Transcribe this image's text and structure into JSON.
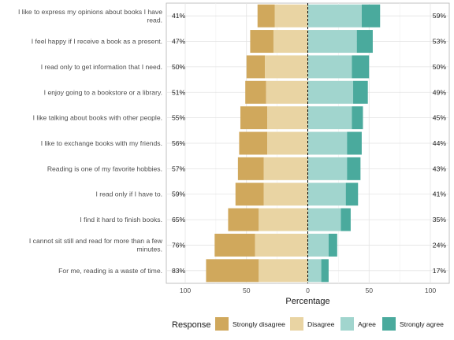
{
  "chart_data": {
    "type": "bar",
    "orientation": "horizontal-diverging",
    "xlabel": "Percentage",
    "ylabel": "",
    "xlim": [
      -100,
      100
    ],
    "xticks": [
      -100,
      -50,
      0,
      50,
      100
    ],
    "xtick_labels": [
      "100",
      "50",
      "0",
      "50",
      "100"
    ],
    "grid": true,
    "legend_title": "Response",
    "legend_position": "bottom",
    "categories": [
      "I like to express my opinions about books I have read.",
      "I feel happy if I receive a book as a present.",
      "I read only to get information that I need.",
      "I enjoy going to a bookstore or a library.",
      "I like talking about books with other people.",
      "I like to exchange books with my friends.",
      "Reading is one of my favorite hobbies.",
      "I read only if I have to.",
      "I find it hard to finish books.",
      "I cannot sit still and read for more than a few minutes.",
      "For me, reading is a waste of time."
    ],
    "category_lines": [
      [
        "I like to express my opinions about books I have",
        "read."
      ],
      [
        "I feel happy if I receive a book as a present."
      ],
      [
        "I read only to get information that I need."
      ],
      [
        "I enjoy going to a bookstore or a library."
      ],
      [
        "I like talking about books with other people."
      ],
      [
        "I like to exchange books with my friends."
      ],
      [
        "Reading is one of my favorite hobbies."
      ],
      [
        "I read only if I have to."
      ],
      [
        "I find it hard to finish books."
      ],
      [
        "I cannot sit still and read for more than a few",
        "minutes."
      ],
      [
        "For me, reading is a waste of time."
      ]
    ],
    "left_labels": [
      "41%",
      "47%",
      "50%",
      "51%",
      "55%",
      "56%",
      "57%",
      "59%",
      "65%",
      "76%",
      "83%"
    ],
    "right_labels": [
      "59%",
      "53%",
      "50%",
      "49%",
      "45%",
      "44%",
      "43%",
      "41%",
      "35%",
      "24%",
      "17%"
    ],
    "series": [
      {
        "name": "Strongly disagree",
        "color": "#d0a85c",
        "values": [
          14,
          19,
          15,
          17,
          22,
          23,
          21,
          23,
          25,
          33,
          43
        ]
      },
      {
        "name": "Disagree",
        "color": "#e9d4a3",
        "values": [
          27,
          28,
          35,
          34,
          33,
          33,
          36,
          36,
          40,
          43,
          40
        ]
      },
      {
        "name": "Agree",
        "color": "#a1d5ce",
        "values": [
          44,
          40,
          36,
          37,
          36,
          32,
          32,
          31,
          27,
          17,
          11
        ]
      },
      {
        "name": "Strongly agree",
        "color": "#4aaa9d",
        "values": [
          15,
          13,
          14,
          12,
          9,
          12,
          11,
          10,
          8,
          7,
          6
        ]
      }
    ]
  }
}
